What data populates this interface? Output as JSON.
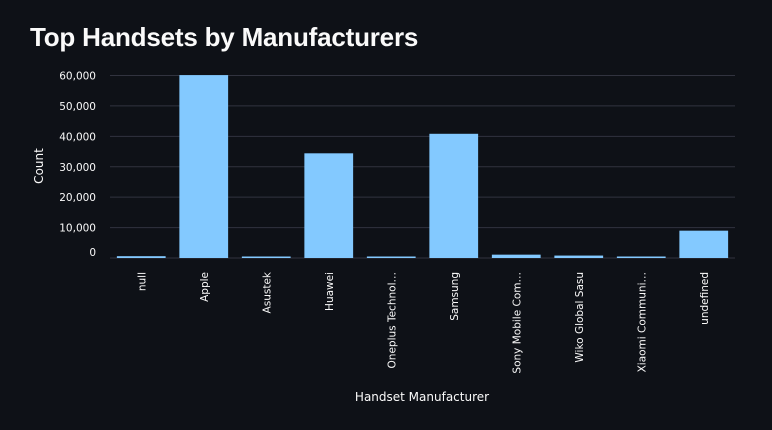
{
  "page": {
    "title": "Top Handsets by Manufacturers"
  },
  "chart_data": {
    "type": "bar",
    "title": "Top Handsets by Manufacturers",
    "xlabel": "Handset Manufacturer",
    "ylabel": "Count",
    "categories": [
      "null",
      "Apple",
      "Asustek",
      "Huawei",
      "Oneplus Technol…",
      "Samsung",
      "Sony Mobile Com…",
      "Wiko Global Sasu",
      "Xiaomi Communi…",
      "undefined"
    ],
    "values": [
      600,
      60137,
      150,
      34423,
      200,
      40839,
      1100,
      800,
      400,
      8987
    ],
    "ylim": [
      0,
      60500
    ],
    "yticks": [
      0,
      10000,
      20000,
      30000,
      40000,
      50000,
      60000
    ],
    "ytick_labels": [
      "0",
      "10,000",
      "20,000",
      "30,000",
      "40,000",
      "50,000",
      "60,000"
    ],
    "grid": true,
    "bar_color": "#83c9ff",
    "grid_color": "#31333f",
    "background_color": "#0e1117"
  }
}
